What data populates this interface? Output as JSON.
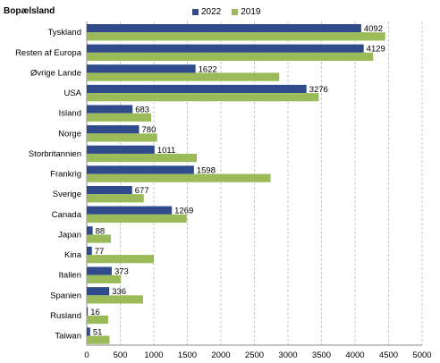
{
  "chart_data": {
    "type": "bar",
    "orientation": "horizontal",
    "title": "Bopælsland",
    "categories": [
      "Tyskland",
      "Resten af Europa",
      "Øvrige Lande",
      "USA",
      "Island",
      "Norge",
      "Storbritannien",
      "Frankrig",
      "Sverige",
      "Canada",
      "Japan",
      "Kina",
      "Italien",
      "Spanien",
      "Rusland",
      "Taiwan"
    ],
    "series": [
      {
        "name": "2022",
        "color": "#2f4b8c",
        "values": [
          4092,
          4129,
          1622,
          3276,
          683,
          780,
          1011,
          1598,
          677,
          1269,
          88,
          77,
          373,
          336,
          16,
          51
        ],
        "labels": [
          "4092",
          "4129",
          "1622",
          "3276",
          "683",
          "780",
          "1011",
          "1598",
          "677",
          "1269",
          "88",
          "77",
          "373",
          "336",
          "16",
          "51"
        ]
      },
      {
        "name": "2019",
        "color": "#9bbb59",
        "values": [
          4450,
          4270,
          2870,
          3460,
          960,
          1050,
          1640,
          2740,
          850,
          1490,
          360,
          1000,
          510,
          840,
          320,
          340
        ]
      }
    ],
    "xlim": [
      0,
      5000
    ],
    "xticks": [
      "0",
      "500",
      "1000",
      "1500",
      "2000",
      "2500",
      "3000",
      "3500",
      "4000",
      "4500",
      "5000"
    ],
    "grid": "vertical-dashed",
    "legend_position": "top"
  }
}
